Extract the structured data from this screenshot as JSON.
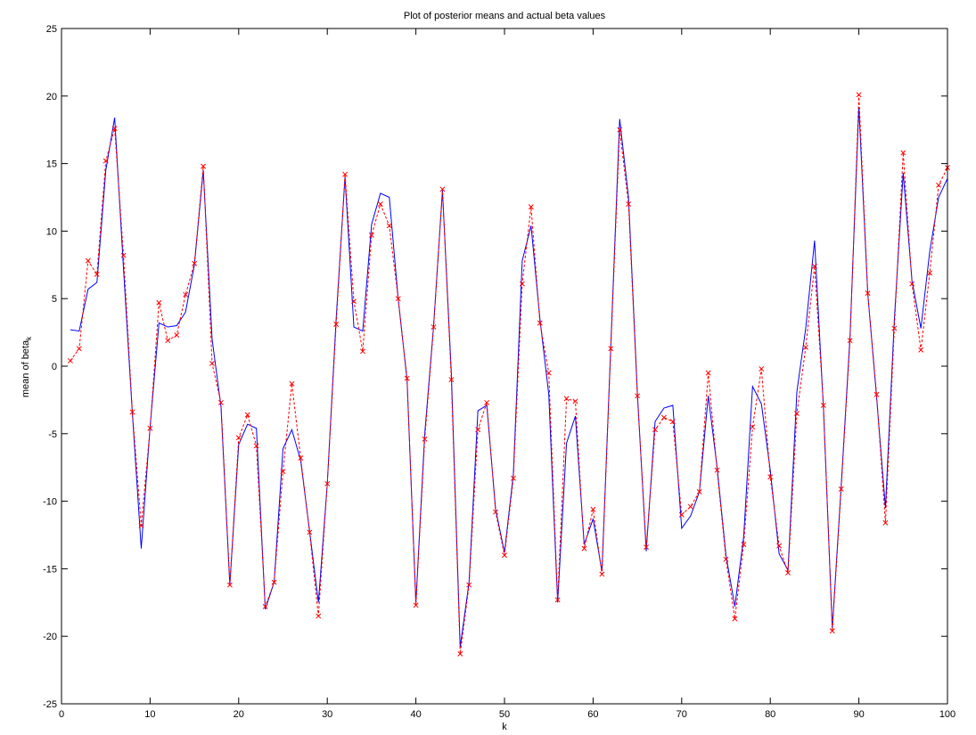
{
  "chart_data": {
    "type": "line",
    "title": "Plot of posterior means and actual beta values",
    "xlabel": "k",
    "ylabel": "mean of beta",
    "ylabel_sub": "k",
    "xlim": [
      0,
      100
    ],
    "ylim": [
      -25,
      25
    ],
    "xticks": [
      "0",
      "10",
      "20",
      "30",
      "40",
      "50",
      "60",
      "70",
      "80",
      "90",
      "100"
    ],
    "yticks": [
      "25",
      "20",
      "15",
      "10",
      "5",
      "0",
      "-5",
      "-10",
      "-15",
      "-20",
      "-25"
    ],
    "grid": false,
    "x": [
      1,
      2,
      3,
      4,
      5,
      6,
      7,
      8,
      9,
      10,
      11,
      12,
      13,
      14,
      15,
      16,
      17,
      18,
      19,
      20,
      21,
      22,
      23,
      24,
      25,
      26,
      27,
      28,
      29,
      30,
      31,
      32,
      33,
      34,
      35,
      36,
      37,
      38,
      39,
      40,
      41,
      42,
      43,
      44,
      45,
      46,
      47,
      48,
      49,
      50,
      51,
      52,
      53,
      54,
      55,
      56,
      57,
      58,
      59,
      60,
      61,
      62,
      63,
      64,
      65,
      66,
      67,
      68,
      69,
      70,
      71,
      72,
      73,
      74,
      75,
      76,
      77,
      78,
      79,
      80,
      81,
      82,
      83,
      84,
      85,
      86,
      87,
      88,
      89,
      90,
      91,
      92,
      93,
      94,
      95,
      96,
      97,
      98,
      99,
      100
    ],
    "series": [
      {
        "style": "solid",
        "color": "#0000ff",
        "values": [
          2.7,
          2.6,
          5.7,
          6.2,
          14.5,
          18.4,
          7.2,
          -3.5,
          -13.5,
          -4.5,
          3.2,
          2.9,
          3.0,
          4.0,
          7.5,
          14.5,
          2.0,
          -3.0,
          -16.2,
          -5.8,
          -4.3,
          -4.6,
          -18.0,
          -16.0,
          -6.1,
          -4.7,
          -7.0,
          -12.2,
          -17.5,
          -8.7,
          3.5,
          14.0,
          2.9,
          2.6,
          10.5,
          12.8,
          12.5,
          5.0,
          -1.0,
          -17.5,
          -5.0,
          3.0,
          13.0,
          -0.5,
          -20.8,
          -16.0,
          -3.3,
          -2.9,
          -10.6,
          -13.8,
          -8.0,
          7.8,
          10.4,
          3.5,
          -2.1,
          -17.5,
          -5.7,
          -3.7,
          -13.2,
          -11.3,
          -15.2,
          1.5,
          18.3,
          12.5,
          -2.0,
          -13.7,
          -4.1,
          -3.1,
          -2.9,
          -12.0,
          -11.1,
          -9.3,
          -2.2,
          -7.5,
          -14.0,
          -17.8,
          -12.6,
          -1.5,
          -2.8,
          -7.7,
          -13.9,
          -15.1,
          -1.9,
          2.8,
          9.3,
          -3.1,
          -19.4,
          -8.9,
          2.2,
          19.2,
          5.4,
          -2.3,
          -10.5,
          3.4,
          14.3,
          6.3,
          2.8,
          8.5,
          12.5,
          13.9
        ]
      },
      {
        "style": "dashed-x",
        "color": "#ff0000",
        "values": [
          0.4,
          1.3,
          7.8,
          6.8,
          15.2,
          17.6,
          8.2,
          -3.4,
          -11.8,
          -4.6,
          4.7,
          1.9,
          2.3,
          5.3,
          7.6,
          14.8,
          0.2,
          -2.7,
          -16.2,
          -5.3,
          -3.6,
          -5.9,
          -17.8,
          -16.0,
          -7.8,
          -1.3,
          -6.8,
          -12.3,
          -18.5,
          -8.7,
          3.1,
          14.2,
          4.8,
          1.1,
          9.7,
          12.0,
          10.4,
          5.0,
          -0.9,
          -17.7,
          -5.4,
          2.9,
          13.1,
          -1.0,
          -21.3,
          -16.2,
          -4.7,
          -2.7,
          -10.8,
          -14.0,
          -8.3,
          6.1,
          11.8,
          3.2,
          -0.5,
          -17.3,
          -2.4,
          -2.6,
          -13.5,
          -10.6,
          -15.4,
          1.3,
          17.5,
          12.0,
          -2.2,
          -13.4,
          -4.7,
          -3.8,
          -4.1,
          -11.0,
          -10.4,
          -9.3,
          -0.5,
          -7.7,
          -14.3,
          -18.7,
          -13.2,
          -4.5,
          -0.2,
          -8.2,
          -13.3,
          -15.3,
          -3.5,
          1.4,
          7.4,
          -2.9,
          -19.6,
          -9.1,
          1.9,
          20.1,
          5.4,
          -2.1,
          -11.6,
          2.8,
          15.8,
          6.1,
          1.2,
          6.9,
          13.4,
          14.7
        ]
      }
    ]
  }
}
